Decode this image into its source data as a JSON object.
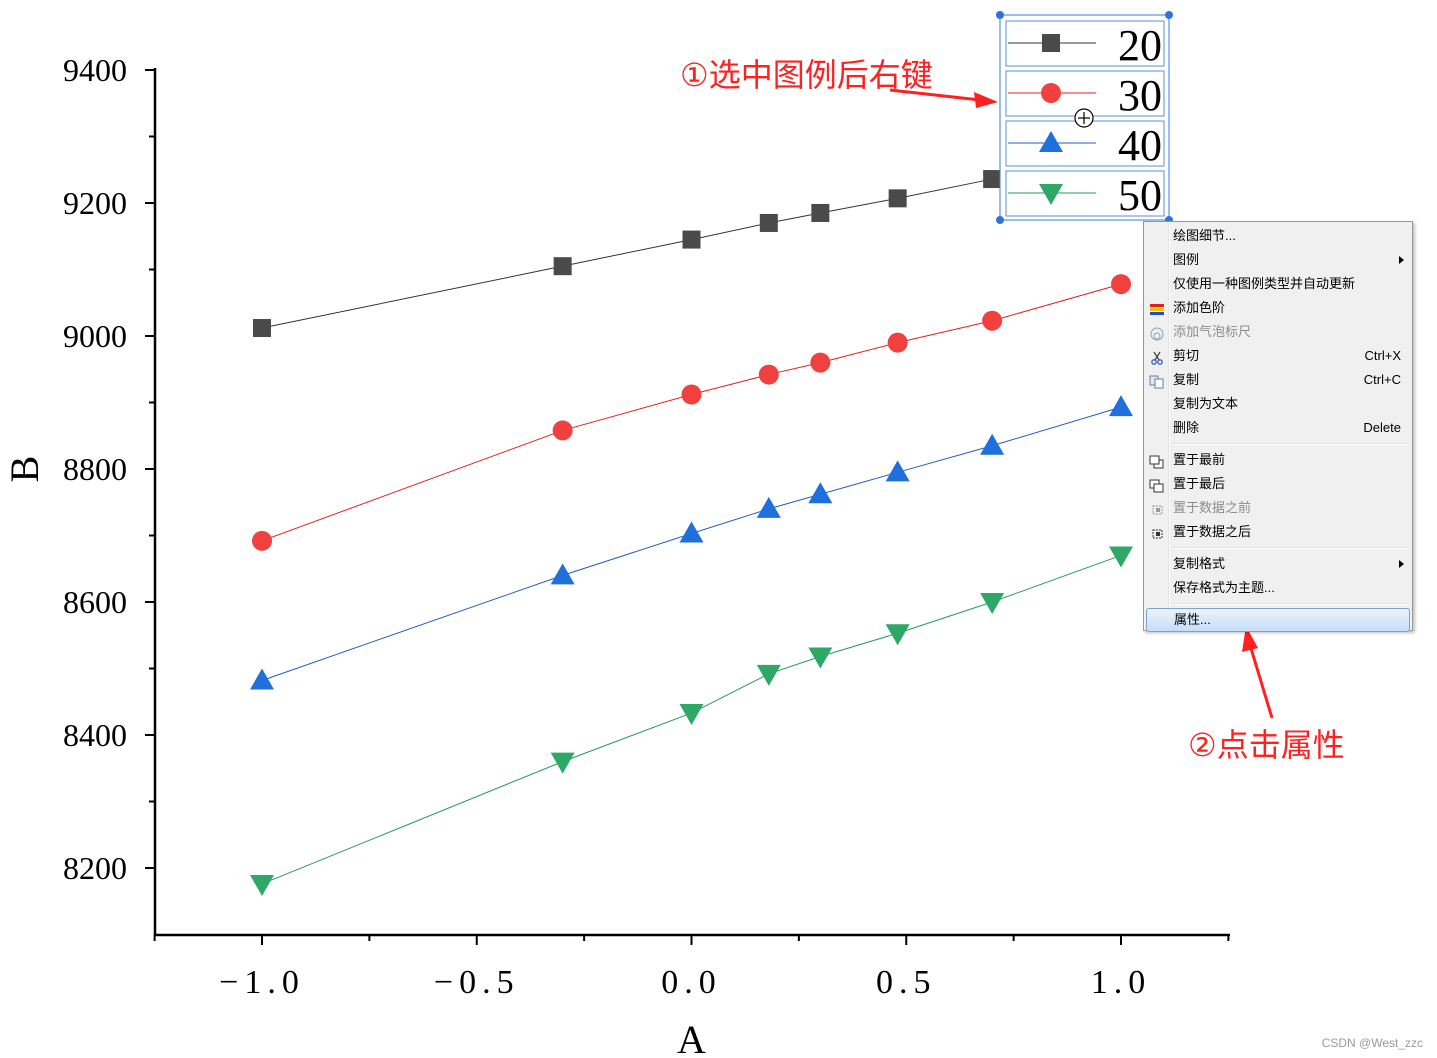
{
  "chart_data": {
    "type": "line",
    "xlabel": "A",
    "ylabel": "B",
    "xlim": [
      -1.25,
      1.25
    ],
    "ylim": [
      8100,
      9400
    ],
    "xticks": [
      -1.0,
      -0.5,
      0.0,
      0.5,
      1.0
    ],
    "xtick_labels": [
      "-1.0",
      "-0.5",
      "0.0",
      "0.5",
      "1.0"
    ],
    "yticks": [
      8200,
      8400,
      8600,
      8800,
      9000,
      9200,
      9400
    ],
    "ytick_labels": [
      "8200",
      "8400",
      "8600",
      "8800",
      "9000",
      "9200",
      "9400"
    ],
    "x": [
      -1.0,
      -0.3,
      0.0,
      0.18,
      0.3,
      0.48,
      0.7,
      1.0
    ],
    "series": [
      {
        "name": "20",
        "marker": "square",
        "color": "#4a4a4a",
        "line_color": "#333333",
        "values": [
          9012,
          9105,
          9145,
          9170,
          9185,
          9207,
          9236,
          null
        ]
      },
      {
        "name": "30",
        "marker": "circle",
        "color": "#f04040",
        "line_color": "#e02020",
        "values": [
          8692,
          8858,
          8912,
          8942,
          8960,
          8990,
          9023,
          9078
        ]
      },
      {
        "name": "40",
        "marker": "triangle-up",
        "color": "#1f6fdc",
        "line_color": "#1f5fbf",
        "values": [
          8482,
          8640,
          8703,
          8740,
          8762,
          8795,
          8835,
          8893
        ]
      },
      {
        "name": "50",
        "marker": "triangle-down",
        "color": "#2ea866",
        "line_color": "#2a9a5a",
        "values": [
          8176,
          8360,
          8433,
          8492,
          8518,
          8553,
          8600,
          8670
        ]
      }
    ],
    "legend_position": "top-right"
  },
  "context_menu": {
    "groups": [
      [
        {
          "label": "绘图细节...",
          "shortcut": "",
          "submenu": false,
          "disabled": false,
          "icon": ""
        },
        {
          "label": "图例",
          "shortcut": "",
          "submenu": true,
          "disabled": false,
          "icon": ""
        },
        {
          "label": "仅使用一种图例类型并自动更新",
          "shortcut": "",
          "submenu": false,
          "disabled": false,
          "icon": ""
        },
        {
          "label": "添加色阶",
          "shortcut": "",
          "submenu": false,
          "disabled": false,
          "icon": "color-scale-icon"
        },
        {
          "label": "添加气泡标尺",
          "shortcut": "",
          "submenu": false,
          "disabled": true,
          "icon": "bubble-scale-icon"
        },
        {
          "label": "剪切",
          "shortcut": "Ctrl+X",
          "submenu": false,
          "disabled": false,
          "icon": "scissors-icon"
        },
        {
          "label": "复制",
          "shortcut": "Ctrl+C",
          "submenu": false,
          "disabled": false,
          "icon": "copy-icon"
        },
        {
          "label": "复制为文本",
          "shortcut": "",
          "submenu": false,
          "disabled": false,
          "icon": ""
        },
        {
          "label": "删除",
          "shortcut": "Delete",
          "submenu": false,
          "disabled": false,
          "icon": ""
        }
      ],
      [
        {
          "label": "置于最前",
          "shortcut": "",
          "submenu": false,
          "disabled": false,
          "icon": "bring-front-icon"
        },
        {
          "label": "置于最后",
          "shortcut": "",
          "submenu": false,
          "disabled": false,
          "icon": "send-back-icon"
        },
        {
          "label": "置于数据之前",
          "shortcut": "",
          "submenu": false,
          "disabled": true,
          "icon": "before-data-icon"
        },
        {
          "label": "置于数据之后",
          "shortcut": "",
          "submenu": false,
          "disabled": false,
          "icon": "after-data-icon"
        }
      ],
      [
        {
          "label": "复制格式",
          "shortcut": "",
          "submenu": true,
          "disabled": false,
          "icon": ""
        },
        {
          "label": "保存格式为主题...",
          "shortcut": "",
          "submenu": false,
          "disabled": false,
          "icon": ""
        }
      ],
      [
        {
          "label": "属性...",
          "shortcut": "",
          "submenu": false,
          "disabled": false,
          "icon": "",
          "highlighted": true
        }
      ]
    ]
  },
  "annotations": {
    "step1": "①选中图例后右键",
    "step2": "②点击属性",
    "color": "#ff2020"
  },
  "watermark": "CSDN @West_zzc"
}
